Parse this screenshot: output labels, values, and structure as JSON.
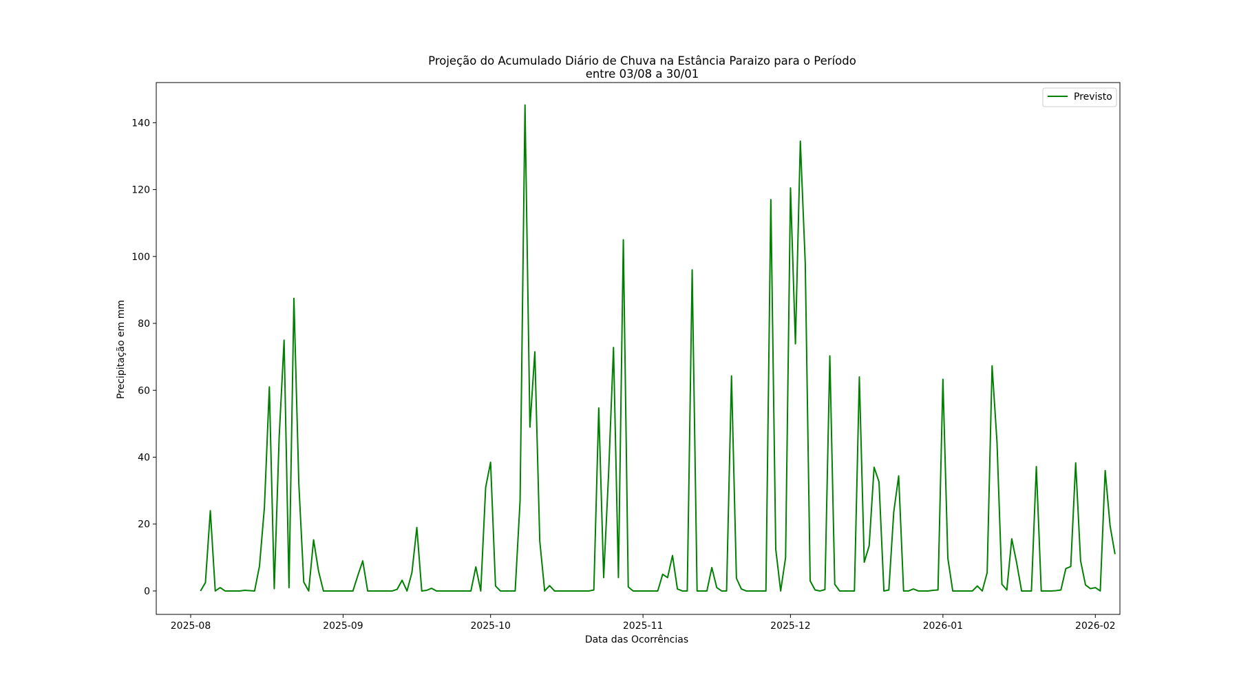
{
  "chart_data": {
    "type": "line",
    "title_lines": [
      "Projeção do Acumulado Diário de Chuva na Estância Paraizo para o Período",
      "entre 03/08 a 30/01"
    ],
    "xlabel": "Data das Ocorrências",
    "ylabel": "Precipitação em mm",
    "xlim": [
      "2025-07-25",
      "2026-02-06"
    ],
    "ylim": [
      -7,
      152
    ],
    "yticks": [
      0,
      20,
      40,
      60,
      80,
      100,
      120,
      140
    ],
    "xticks": [
      {
        "date": "2025-08-01",
        "label": "2025-08"
      },
      {
        "date": "2025-09-01",
        "label": "2025-09"
      },
      {
        "date": "2025-10-01",
        "label": "2025-10"
      },
      {
        "date": "2025-11-01",
        "label": "2025-11"
      },
      {
        "date": "2025-12-01",
        "label": "2025-12"
      },
      {
        "date": "2026-01-01",
        "label": "2026-01"
      },
      {
        "date": "2026-02-01",
        "label": "2026-02"
      }
    ],
    "grid": false,
    "legend_position": "upper right",
    "series": [
      {
        "name": "Previsto",
        "color": "#008000",
        "start_date": "2025-08-03",
        "values": [
          0,
          2.5,
          24,
          0,
          1,
          0,
          0,
          0,
          0,
          0.2,
          0.1,
          0,
          7.5,
          25,
          61,
          0.7,
          46,
          75,
          1,
          87.5,
          32,
          2.7,
          0,
          15.3,
          6,
          0,
          0,
          0,
          0,
          0,
          0,
          0,
          4.6,
          9,
          0,
          0,
          0,
          0,
          0,
          0,
          0.5,
          3.2,
          0,
          5.5,
          19,
          0,
          0.2,
          0.8,
          0,
          0,
          0,
          0,
          0,
          0,
          0,
          0,
          7.2,
          0,
          31,
          38.5,
          1.5,
          0,
          0,
          0,
          0,
          27,
          145.3,
          49,
          71.5,
          15,
          0,
          1.6,
          0,
          0,
          0,
          0,
          0,
          0,
          0,
          0,
          0.3,
          54.7,
          4,
          35,
          72.8,
          4,
          105,
          1.2,
          0,
          0,
          0,
          0,
          0,
          0,
          5,
          4,
          10.6,
          0.6,
          0,
          0,
          96,
          0,
          0,
          0,
          7,
          1,
          0,
          0,
          64.3,
          3.8,
          0.6,
          0,
          0,
          0,
          0,
          0,
          117,
          12.5,
          0,
          10,
          120.5,
          73.9,
          134.5,
          98,
          3,
          0.3,
          0,
          0.4,
          70.3,
          2,
          0,
          0,
          0,
          0,
          64,
          8.6,
          13.5,
          37,
          32.6,
          0,
          0.3,
          23.6,
          34.4,
          0,
          0,
          0.6,
          0,
          0,
          0,
          0.2,
          0.3,
          63.3,
          9.8,
          0,
          0,
          0,
          0,
          0,
          1.5,
          0,
          5.5,
          67.3,
          44.5,
          2,
          0.3,
          15.6,
          8.4,
          0,
          0,
          0,
          37.2,
          0,
          0,
          0,
          0.1,
          0.3,
          6.7,
          7.3,
          38.3,
          9,
          1.8,
          0.7,
          1,
          0,
          36,
          19.5,
          11
        ]
      }
    ]
  }
}
